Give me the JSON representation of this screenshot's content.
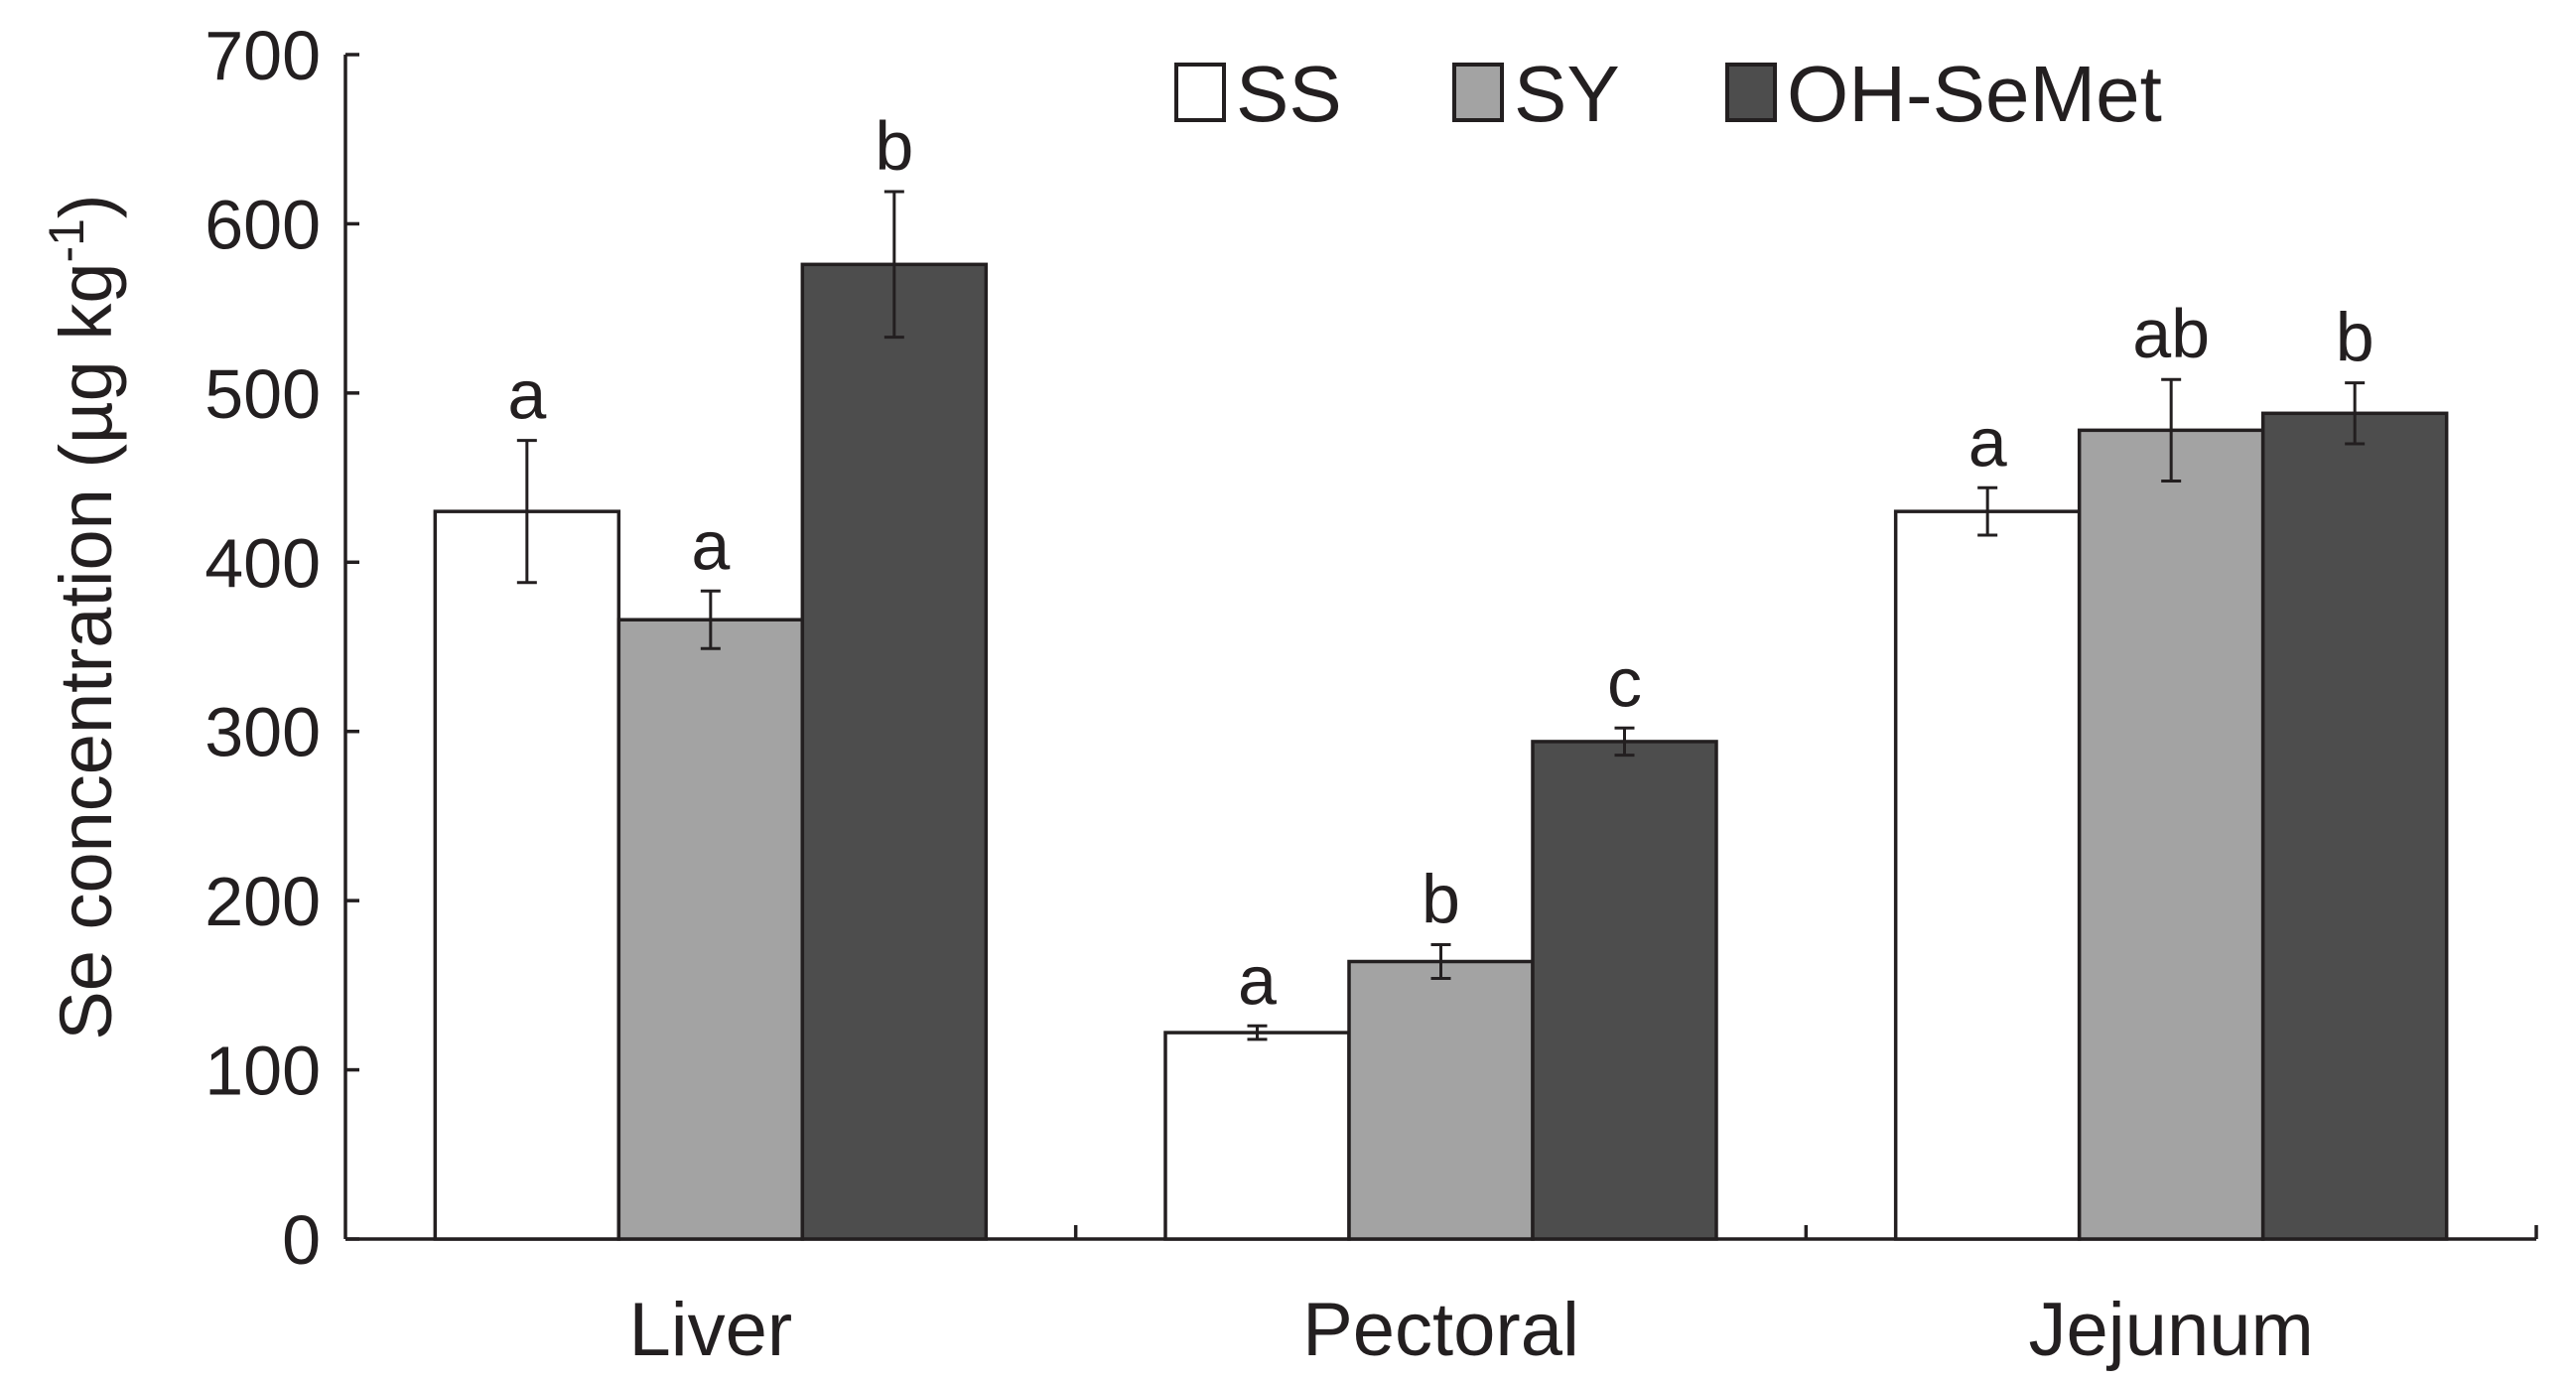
{
  "chart_data": {
    "type": "bar",
    "title": "",
    "xlabel": "",
    "ylabel": "Se concentration (µg kg",
    "ylabel_superscript": "-1",
    "ylabel_close": ")",
    "ylim": [
      0,
      700
    ],
    "yticks": [
      "0",
      "100",
      "200",
      "300",
      "400",
      "500",
      "600",
      "700"
    ],
    "categories": [
      "Liver",
      "Pectoral",
      "Jejunum"
    ],
    "legend_position": "top-right",
    "series": [
      {
        "name": "SS",
        "color": "#ffffff",
        "values": [
          430,
          122,
          430
        ],
        "errors": [
          42,
          4,
          14
        ],
        "labels": [
          "a",
          "a",
          "a"
        ]
      },
      {
        "name": "SY",
        "color": "#a3a3a3",
        "values": [
          366,
          164,
          478
        ],
        "errors": [
          17,
          10,
          30
        ],
        "labels": [
          "a",
          "b",
          "ab"
        ]
      },
      {
        "name": "OH-SeMet",
        "color": "#4d4d4d",
        "values": [
          576,
          294,
          488
        ],
        "errors": [
          43,
          8,
          18
        ],
        "labels": [
          "b",
          "c",
          "b"
        ]
      }
    ]
  }
}
